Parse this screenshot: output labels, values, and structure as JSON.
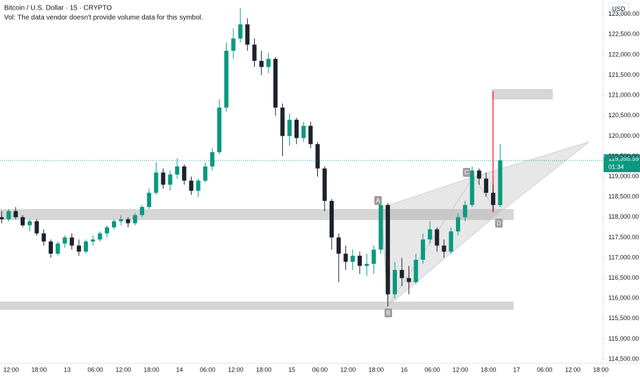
{
  "chart_data": {
    "type": "candlestick",
    "title": "Bitcoin / U.S. Dollar · 15 · CRYPTO",
    "subtitle": "Vol: The data vendor doesn't provide volume data for this symbol.",
    "currency": "USD",
    "up_color": "#089981",
    "down_color": "#1e222d",
    "xlim": [
      9.65,
      138.45
    ],
    "ylim": [
      114400,
      123350
    ],
    "xticks": [
      {
        "value": 12,
        "label": "12:00"
      },
      {
        "value": 18,
        "label": "18:00"
      },
      {
        "value": 24,
        "label": "13"
      },
      {
        "value": 30,
        "label": "06:00"
      },
      {
        "value": 36,
        "label": "12:00"
      },
      {
        "value": 42,
        "label": "18:00"
      },
      {
        "value": 48,
        "label": "14"
      },
      {
        "value": 54,
        "label": "06:00"
      },
      {
        "value": 60,
        "label": "12:00"
      },
      {
        "value": 66,
        "label": "18:00"
      },
      {
        "value": 72,
        "label": "15"
      },
      {
        "value": 78,
        "label": "06:00"
      },
      {
        "value": 84,
        "label": "12:00"
      },
      {
        "value": 90,
        "label": "18:00"
      },
      {
        "value": 96,
        "label": "16"
      },
      {
        "value": 102,
        "label": "06:00"
      },
      {
        "value": 108,
        "label": "12:00"
      },
      {
        "value": 114,
        "label": "18:00"
      },
      {
        "value": 120,
        "label": "17"
      },
      {
        "value": 126,
        "label": "06:00"
      },
      {
        "value": 132,
        "label": "12:00"
      },
      {
        "value": 138,
        "label": "18:00"
      }
    ],
    "yticks": [
      {
        "value": 114500,
        "label": "114,500.00"
      },
      {
        "value": 115000,
        "label": "115,000.00"
      },
      {
        "value": 115500,
        "label": "115,500.00"
      },
      {
        "value": 116000,
        "label": "116,000.00"
      },
      {
        "value": 116500,
        "label": "116,500.00"
      },
      {
        "value": 117000,
        "label": "117,000.00"
      },
      {
        "value": 117500,
        "label": "117,500.00"
      },
      {
        "value": 118000,
        "label": "118,000.00"
      },
      {
        "value": 118500,
        "label": "118,500.00"
      },
      {
        "value": 119000,
        "label": "119,000.00"
      },
      {
        "value": 119500,
        "label": "119,500.00"
      },
      {
        "value": 120000,
        "label": "120,000.00"
      },
      {
        "value": 120500,
        "label": "120,500.00"
      },
      {
        "value": 121000,
        "label": "121,000.00"
      },
      {
        "value": 121500,
        "label": "121,500.00"
      },
      {
        "value": 122000,
        "label": "122,000.00"
      },
      {
        "value": 122500,
        "label": "122,500.00"
      },
      {
        "value": 123000,
        "label": "123,000.00"
      }
    ],
    "last_price": {
      "value": 119395.59,
      "label": "119,395.59"
    },
    "countdown": "01:34",
    "pattern_labels": [
      "A",
      "B",
      "C",
      "D"
    ],
    "candles": [
      [
        10,
        118000,
        118150,
        117850,
        117950
      ],
      [
        11.5,
        117950,
        118200,
        117900,
        118150
      ],
      [
        13,
        118150,
        118250,
        117950,
        118000
      ],
      [
        14.5,
        118000,
        118050,
        117750,
        117800
      ],
      [
        16,
        117800,
        117950,
        117650,
        117900
      ],
      [
        17.5,
        117900,
        117950,
        117550,
        117600
      ],
      [
        19,
        117600,
        117700,
        117300,
        117400
      ],
      [
        20.5,
        117400,
        117450,
        117000,
        117100
      ],
      [
        22,
        117100,
        117400,
        117050,
        117350
      ],
      [
        23.5,
        117350,
        117550,
        117250,
        117500
      ],
      [
        25,
        117500,
        117600,
        117200,
        117300
      ],
      [
        26.5,
        117300,
        117450,
        117050,
        117150
      ],
      [
        28,
        117150,
        117450,
        117100,
        117400
      ],
      [
        29.5,
        117400,
        117550,
        117300,
        117450
      ],
      [
        31,
        117450,
        117650,
        117400,
        117600
      ],
      [
        32.5,
        117600,
        117800,
        117500,
        117750
      ],
      [
        34,
        117750,
        117950,
        117700,
        117900
      ],
      [
        35.5,
        117900,
        118050,
        117800,
        117950
      ],
      [
        37,
        117950,
        118000,
        117750,
        117850
      ],
      [
        38.5,
        117850,
        118100,
        117800,
        118050
      ],
      [
        40,
        118050,
        118300,
        118000,
        118250
      ],
      [
        41.5,
        118250,
        118700,
        118200,
        118600
      ],
      [
        43,
        118600,
        119350,
        118550,
        119100
      ],
      [
        44.5,
        119100,
        119200,
        118700,
        118800
      ],
      [
        46,
        118800,
        119150,
        118650,
        119050
      ],
      [
        47.5,
        119050,
        119450,
        118950,
        119250
      ],
      [
        49,
        119250,
        119300,
        118800,
        118900
      ],
      [
        50.5,
        118900,
        119000,
        118550,
        118650
      ],
      [
        52,
        118650,
        118950,
        118500,
        118900
      ],
      [
        53.5,
        118900,
        119350,
        118850,
        119250
      ],
      [
        55,
        119250,
        119700,
        119150,
        119600
      ],
      [
        56.5,
        119600,
        120900,
        119550,
        120700
      ],
      [
        58,
        120700,
        122300,
        120600,
        122100
      ],
      [
        59.5,
        122100,
        122650,
        121900,
        122400
      ],
      [
        61,
        122400,
        123150,
        122300,
        122750
      ],
      [
        62.5,
        122750,
        122900,
        122100,
        122250
      ],
      [
        64,
        122250,
        122400,
        121700,
        121850
      ],
      [
        65.5,
        121850,
        122100,
        121500,
        121700
      ],
      [
        67,
        121700,
        122050,
        121550,
        121900
      ],
      [
        68.5,
        121900,
        121950,
        120500,
        120700
      ],
      [
        70,
        120700,
        120800,
        119500,
        120000
      ],
      [
        71.5,
        120000,
        120550,
        119750,
        120400
      ],
      [
        73,
        120400,
        120450,
        119800,
        119950
      ],
      [
        74.5,
        119950,
        120350,
        119850,
        120250
      ],
      [
        76,
        120250,
        120350,
        119700,
        119800
      ],
      [
        77.5,
        119800,
        119850,
        119000,
        119200
      ],
      [
        79,
        119200,
        119250,
        118150,
        118400
      ],
      [
        80.5,
        118400,
        118450,
        117200,
        117500
      ],
      [
        82,
        117500,
        117600,
        116400,
        117100
      ],
      [
        83.5,
        117100,
        117300,
        116700,
        116900
      ],
      [
        85,
        116900,
        117200,
        116700,
        117050
      ],
      [
        86.5,
        117050,
        117150,
        116600,
        116800
      ],
      [
        88,
        116800,
        117100,
        116550,
        116850
      ],
      [
        89.5,
        116850,
        117300,
        116600,
        117200
      ],
      [
        91,
        117200,
        118450,
        117100,
        118300
      ],
      [
        92.5,
        118300,
        118350,
        115800,
        116100
      ],
      [
        94,
        116100,
        116900,
        116000,
        116700
      ],
      [
        95.5,
        116700,
        117000,
        116300,
        116500
      ],
      [
        97,
        116500,
        116800,
        116100,
        116400
      ],
      [
        98.5,
        116400,
        117100,
        116350,
        116950
      ],
      [
        100,
        116950,
        117600,
        116850,
        117450
      ],
      [
        101.5,
        117450,
        117900,
        117350,
        117700
      ],
      [
        103,
        117700,
        117750,
        117150,
        117300
      ],
      [
        104.5,
        117300,
        117450,
        117000,
        117150
      ],
      [
        106,
        117150,
        117750,
        117100,
        117650
      ],
      [
        107.5,
        117650,
        118100,
        117550,
        118000
      ],
      [
        109,
        118000,
        118400,
        117900,
        118300
      ],
      [
        110.5,
        118300,
        119250,
        118250,
        119150
      ],
      [
        112,
        119150,
        119200,
        118800,
        118950
      ],
      [
        113.5,
        118950,
        119100,
        118500,
        118600
      ],
      [
        115,
        118600,
        118800,
        118150,
        118300
      ],
      [
        116.5,
        118300,
        119800,
        118250,
        119400
      ]
    ]
  }
}
